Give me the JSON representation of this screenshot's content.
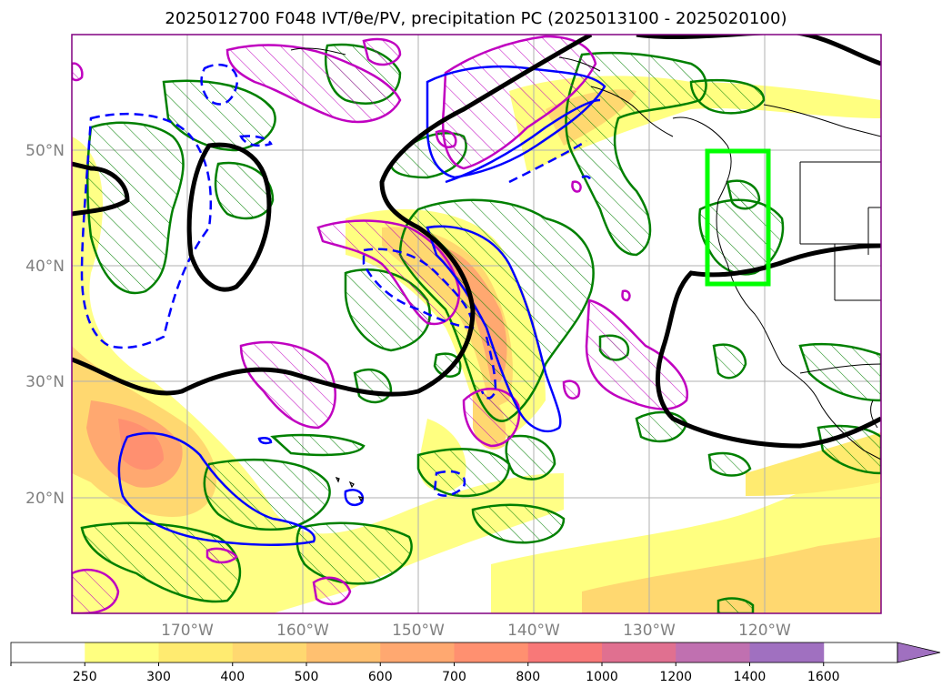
{
  "map": {
    "title": "2025012700 F048 IVT/θe/PV, precipitation PC (2025013100 - 2025020100)",
    "lat_labels": [
      "50°N",
      "40°N",
      "30°N",
      "20°N"
    ],
    "lon_labels": [
      "170°W",
      "160°W",
      "150°W",
      "140°W",
      "130°W",
      "120°W"
    ],
    "colors": {
      "pv_contour": "#000000",
      "theta_e_contour": "#0000ff",
      "precip_pc_contour": "#008000",
      "ivt_hatch_contour": "#c000c0",
      "highlight_box": "#00ff00",
      "gridline": "#b0b0b0"
    }
  },
  "colorbar": {
    "levels": [
      "250",
      "300",
      "400",
      "500",
      "600",
      "700",
      "800",
      "1000",
      "1200",
      "1400",
      "1600"
    ],
    "colors": [
      "#ffffff",
      "#ffff80",
      "#ffeb70",
      "#ffd870",
      "#ffc070",
      "#ffa870",
      "#ff9070",
      "#f87878",
      "#e07090",
      "#c070b0",
      "#a070c0"
    ],
    "extend": "max"
  }
}
